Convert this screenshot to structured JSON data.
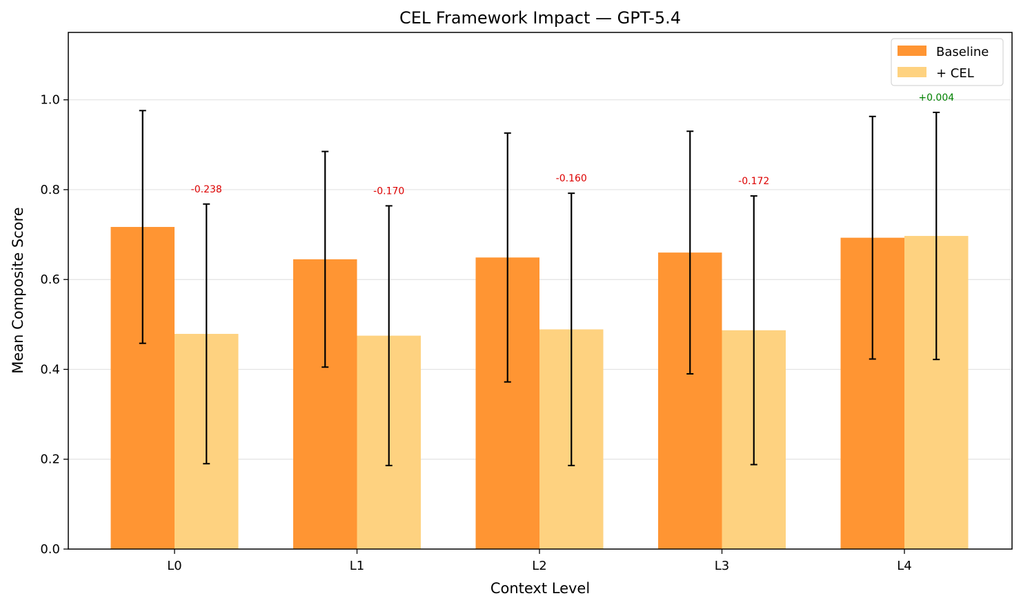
{
  "chart_data": {
    "type": "bar",
    "title": "CEL Framework Impact — GPT-5.4",
    "xlabel": "Context Level",
    "ylabel": "Mean Composite Score",
    "ylim": [
      0,
      1.15
    ],
    "yticks": [
      "0.0",
      "0.2",
      "0.4",
      "0.6",
      "0.8",
      "1.0"
    ],
    "ytick_values": [
      0,
      0.2,
      0.4,
      0.6,
      0.8,
      1.0
    ],
    "categories": [
      "L0",
      "L1",
      "L2",
      "L3",
      "L4"
    ],
    "grid": "horizontal",
    "legend_position": "top-right",
    "series": [
      {
        "name": "Baseline",
        "color": "#ff9533",
        "values": [
          0.717,
          0.645,
          0.649,
          0.66,
          0.693
        ],
        "error": [
          0.259,
          0.24,
          0.277,
          0.27,
          0.27
        ]
      },
      {
        "name": "+ CEL",
        "color": "#fed280",
        "values": [
          0.479,
          0.475,
          0.489,
          0.487,
          0.697
        ],
        "error": [
          0.289,
          0.289,
          0.303,
          0.299,
          0.275
        ]
      }
    ],
    "annotations": [
      {
        "text": "-0.238",
        "color": "#dd0000"
      },
      {
        "text": "-0.170",
        "color": "#dd0000"
      },
      {
        "text": "-0.160",
        "color": "#dd0000"
      },
      {
        "text": "-0.172",
        "color": "#dd0000"
      },
      {
        "text": "+0.004",
        "color": "#008000"
      }
    ]
  }
}
